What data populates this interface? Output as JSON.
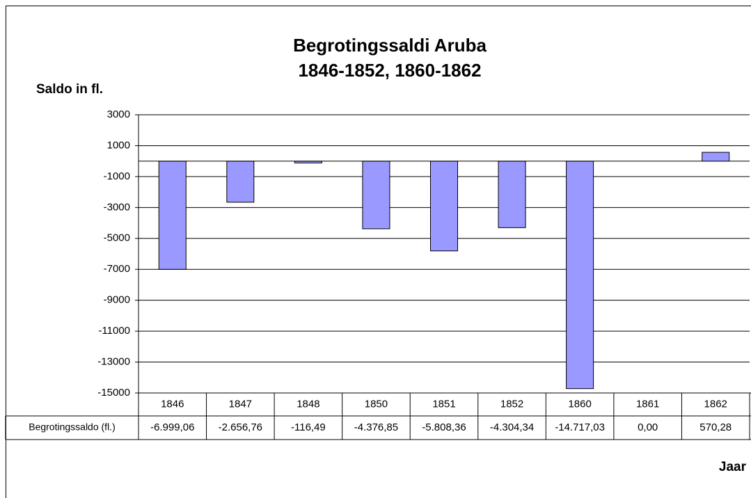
{
  "chart_data": {
    "type": "bar",
    "title": [
      "Begrotingssaldi Aruba",
      "1846-1852, 1860-1862"
    ],
    "y_label": "Saldo in fl.",
    "x_label": "Jaar",
    "categories": [
      "1846",
      "1847",
      "1848",
      "1850",
      "1851",
      "1852",
      "1860",
      "1861",
      "1862"
    ],
    "series": [
      {
        "name": "Begrotingssaldo (fl.)",
        "color": "#9999ff",
        "values": [
          -6999.06,
          -2656.76,
          -116.49,
          -4376.85,
          -5808.36,
          -4304.34,
          -14717.03,
          0,
          570.28
        ],
        "value_labels": [
          "-6.999,06",
          "-2.656,76",
          "-116,49",
          "-4.376,85",
          "-5.808,36",
          "-4.304,34",
          "-14.717,03",
          "0,00",
          "570,28"
        ]
      }
    ],
    "ylim": [
      -15000,
      3000
    ],
    "yticks": [
      3000,
      1000,
      -1000,
      -3000,
      -5000,
      -7000,
      -9000,
      -11000,
      -13000,
      -15000
    ],
    "grid": true
  }
}
